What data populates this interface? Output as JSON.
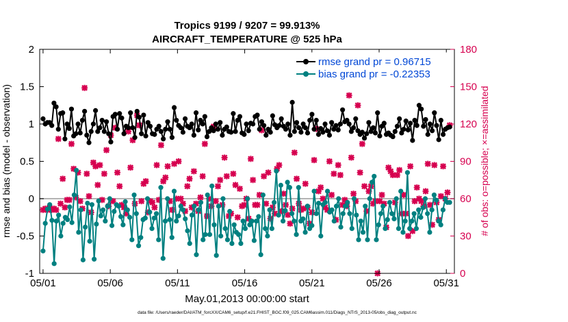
{
  "chart_data": {
    "type": "line",
    "title": "Tropics 9199 / 9207 = 99.913%",
    "subtitle": "AIRCRAFT_TEMPERATURE @ 525 hPa",
    "xlabel": "May.01,2013 00:00:00 start",
    "ylabel_left": "rmse and bias (model - observation)",
    "ylabel_right": "# of obs: o=possible; ×=assimilated",
    "footer": "data file: /Users/raeder/DAI/ATM_forcXX/CAM6_setup/f.e21.FHIST_BGC.f09_025.CAM6assim.011/Diags_NTrS_2013-05/obs_diag_output.nc",
    "x_ticks": [
      "05/01",
      "05/06",
      "05/11",
      "05/16",
      "05/21",
      "05/26",
      "05/31"
    ],
    "y_left_ticks": [
      "-1",
      "-0.5",
      "0",
      "0.5",
      "1",
      "1.5",
      "2"
    ],
    "y_right_ticks": [
      "0",
      "30",
      "60",
      "90",
      "120",
      "150",
      "180"
    ],
    "xlim": [
      0.75,
      31.6
    ],
    "ylim_left": [
      -1,
      2
    ],
    "ylim_right": [
      0,
      180
    ],
    "grid": false,
    "legend_position": "top-right",
    "colors": {
      "rmse": "#000000",
      "bias": "#008080",
      "obs": "#d6004f",
      "zero_line": "#b3b3b3",
      "legend_text": "#0047d6"
    },
    "series": [
      {
        "name": "rmse grand pr = 0.96715",
        "values": [
          1.07,
          1.0,
          1.02,
          1.02,
          0.98,
          1.28,
          1.23,
          0.93,
          1.14,
          1.15,
          0.8,
          1.0,
          0.94,
          1.2,
          0.84,
          0.87,
          1.0,
          0.88,
          1.05,
          1.17,
          0.85,
          0.75,
          0.9,
          1.0,
          1.18,
          0.9,
          0.95,
          1.05,
          0.9,
          1.03,
          0.87,
          0.76,
          1.1,
          1.13,
          0.93,
          1.14,
          1.08,
          0.87,
          0.97,
          0.95,
          1.15,
          0.95,
          0.82,
          1.17,
          1.09,
          0.87,
          1.12,
          0.84,
          1.02,
          0.97,
          0.87,
          0.86,
          0.93,
          0.97,
          0.9,
          0.8,
          0.93,
          1.03,
          0.93,
          0.82,
          1.22,
          1.05,
          0.98,
          0.95,
          0.89,
          1.07,
          0.97,
          0.95,
          1.0,
          0.85,
          1.15,
          0.92,
          1.05,
          1.0,
          1.1,
          0.83,
          0.9,
          0.95,
          0.91,
          1.0,
          0.93,
          1.02,
          0.85,
          0.93,
          0.96,
          0.9,
          0.89,
          1.14,
          0.9,
          1.05,
          1.1,
          0.88,
          0.86,
          1.0,
          0.91,
          1.01,
          1.0,
          1.1,
          1.12,
          0.93,
          1.03,
          0.98,
          0.85,
          0.93,
          0.89,
          1.11,
          0.99,
          0.95,
          0.98,
          1.07,
          0.97,
          0.93,
          1.0,
          0.85,
          1.29,
          0.9,
          1.02,
          0.95,
          0.89,
          1.0,
          0.95,
          0.88,
          1.05,
          1.13,
          0.93,
          1.05,
          0.86,
          0.94,
          0.89,
          1.0,
          0.91,
          0.85,
          1.02,
          0.93,
          0.98,
          0.92,
          1.0,
          1.19,
          1.03,
          1.05,
          1.0,
          0.9,
          0.95,
          1.07,
          0.91,
          0.86,
          0.89,
          0.81,
          0.87,
          1.02,
          0.9,
          0.95,
          0.88,
          1.15,
          0.84,
          0.97,
          1.01,
          0.86,
          0.88,
          0.85,
          0.83,
          0.9,
          0.97,
          1.07,
          0.88,
          0.93,
          1.04,
          0.92,
          1.01,
          0.78,
          1.05,
          0.98,
          1.25,
          1.2,
          0.97,
          1.06,
          0.86,
          1.0,
          0.91,
          1.15,
          0.98,
          0.79,
          1.05,
          0.86,
          0.93,
          0.95,
          0.96
        ]
      },
      {
        "name": "bias grand pr = -0.22353",
        "values": [
          -0.7,
          -0.33,
          -0.14,
          -0.08,
          -0.29,
          -0.87,
          -0.3,
          -0.22,
          -0.5,
          -0.33,
          -0.25,
          -0.28,
          -0.11,
          -0.32,
          0.05,
          0.38,
          -0.45,
          -0.15,
          -0.82,
          -0.38,
          -0.06,
          -0.57,
          -0.08,
          -0.81,
          -0.34,
          -0.03,
          -0.23,
          -0.15,
          -0.3,
          -0.1,
          0.0,
          -0.36,
          -0.17,
          -0.08,
          -0.1,
          -0.24,
          -0.35,
          -0.04,
          -0.15,
          -0.25,
          -0.55,
          0.05,
          -0.2,
          -0.63,
          -0.52,
          -0.28,
          -0.26,
          0.0,
          -0.18,
          -0.4,
          -0.26,
          -0.2,
          -0.55,
          0.15,
          -0.8,
          -0.3,
          0.0,
          -0.28,
          -0.52,
          0.1,
          -0.3,
          -0.23,
          -0.1,
          -0.15,
          -0.27,
          -0.43,
          -0.6,
          -0.22,
          -0.1,
          -0.75,
          -0.15,
          -0.05,
          -0.55,
          -0.48,
          0.05,
          -0.48,
          0.17,
          -0.35,
          -0.76,
          -0.1,
          -0.5,
          0.0,
          -0.4,
          -0.55,
          -0.17,
          -0.6,
          -0.35,
          -0.45,
          -0.48,
          -0.6,
          -0.3,
          -0.4,
          0.0,
          -0.35,
          -0.3,
          -0.56,
          -0.3,
          -0.24,
          -0.75,
          0.05,
          -0.4,
          -0.5,
          -0.15,
          -0.4,
          -0.05,
          0.37,
          -0.22,
          0.18,
          -0.3,
          -0.16,
          0.22,
          0.15,
          -0.2,
          -0.3,
          -0.48,
          0.15,
          -0.3,
          -0.27,
          -0.45,
          -0.1,
          -0.4,
          -0.36,
          0.1,
          -0.2,
          -0.06,
          -0.5,
          -0.08,
          -0.05,
          0.1,
          -0.18,
          -0.15,
          -0.3,
          -0.1,
          0.0,
          -0.38,
          -0.2,
          -0.1,
          -0.05,
          -0.2,
          -0.4,
          0.0,
          -0.22,
          -0.55,
          -0.3,
          -0.45,
          -0.1,
          -0.55,
          0.0,
          0.22,
          0.3,
          -0.55,
          -0.35,
          -0.2,
          -0.1,
          -0.4,
          -0.28,
          -0.05,
          -0.2,
          -0.27,
          0.0,
          -0.4,
          0.1,
          -0.45,
          -0.3,
          0.35,
          -0.4,
          -0.3,
          -0.2,
          -0.4,
          -0.15,
          -0.25,
          -0.12,
          0.0,
          -0.2,
          -0.45,
          -0.15,
          0.05,
          -0.02,
          -0.3,
          -0.35,
          -0.15,
          0.0,
          -0.05,
          -0.05
        ]
      }
    ],
    "obs_assimilated": [
      51,
      52,
      51,
      53,
      51,
      52,
      51,
      108,
      56,
      76,
      53,
      59,
      59,
      104,
      84,
      61,
      81,
      58,
      52,
      149,
      80,
      62,
      49,
      89,
      86,
      71,
      87,
      59,
      80,
      99,
      54,
      111,
      58,
      117,
      81,
      70,
      55,
      53,
      48,
      114,
      85,
      107,
      56,
      127,
      119,
      58,
      72,
      74,
      49,
      58,
      57,
      53,
      87,
      59,
      103,
      74,
      77,
      86,
      58,
      51,
      88,
      60,
      90,
      60,
      56,
      50,
      70,
      76,
      53,
      82,
      56,
      50,
      61,
      78,
      104,
      46,
      60,
      54,
      118,
      58,
      70,
      75,
      55,
      93,
      78,
      46,
      48,
      80,
      71,
      45,
      68,
      54,
      55,
      60,
      44,
      92,
      75,
      55,
      55,
      63,
      115,
      78,
      56,
      81,
      44,
      53,
      48,
      84,
      87,
      50,
      64,
      55,
      47,
      40,
      52,
      97,
      76,
      56,
      51,
      52,
      72,
      53,
      40,
      49,
      91,
      116,
      66,
      69,
      60,
      53,
      51,
      90,
      63,
      80,
      43,
      87,
      79,
      55,
      59,
      54,
      143,
      93,
      64,
      58,
      135,
      81,
      104,
      70,
      50,
      66,
      70,
      56,
      58,
      0,
      58,
      63,
      56,
      37,
      85,
      82,
      79,
      57,
      79,
      83,
      48,
      63,
      48,
      30,
      86,
      34,
      58,
      69,
      60,
      58,
      54,
      66,
      88,
      55,
      39,
      87,
      57,
      43,
      62,
      86,
      60,
      65,
      119
    ]
  },
  "axes": {
    "font_note": ""
  }
}
